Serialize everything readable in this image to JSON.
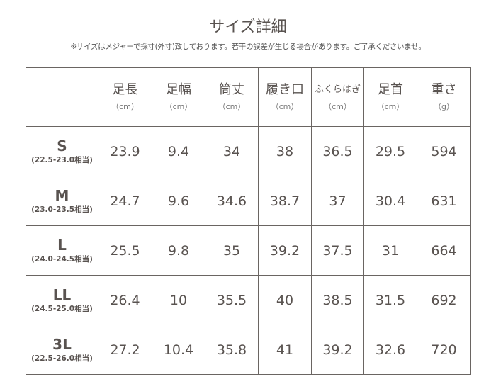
{
  "title": "サイズ詳細",
  "note": "※サイズはメジャーで採寸(外寸)致しております。若干の誤差が生じる場合があります。ご了承くださいませ。",
  "headers": [
    {
      "label": "足長",
      "unit": "（cm）"
    },
    {
      "label": "足幅",
      "unit": "（cm）"
    },
    {
      "label": "筒丈",
      "unit": "（cm）"
    },
    {
      "label": "履き口",
      "unit": "（cm）"
    },
    {
      "label": "ふくらはぎ",
      "unit": "（cm）"
    },
    {
      "label": "足首",
      "unit": "（cm）"
    },
    {
      "label": "重さ",
      "unit": "（g）"
    }
  ],
  "rows": [
    {
      "size": "S",
      "range": "(22.5-23.0相当)",
      "values": [
        "23.9",
        "9.4",
        "34",
        "38",
        "36.5",
        "29.5",
        "594"
      ]
    },
    {
      "size": "M",
      "range": "(23.0-23.5相当)",
      "values": [
        "24.7",
        "9.6",
        "34.6",
        "38.7",
        "37",
        "30.4",
        "631"
      ]
    },
    {
      "size": "L",
      "range": "(24.0-24.5相当)",
      "values": [
        "25.5",
        "9.8",
        "35",
        "39.2",
        "37.5",
        "31",
        "664"
      ]
    },
    {
      "size": "LL",
      "range": "(24.5-25.0相当)",
      "values": [
        "26.4",
        "10",
        "35.5",
        "40",
        "38.5",
        "31.5",
        "692"
      ]
    },
    {
      "size": "3L",
      "range": "(22.5-26.0相当)",
      "values": [
        "27.2",
        "10.4",
        "35.8",
        "41",
        "39.2",
        "32.6",
        "720"
      ]
    }
  ]
}
